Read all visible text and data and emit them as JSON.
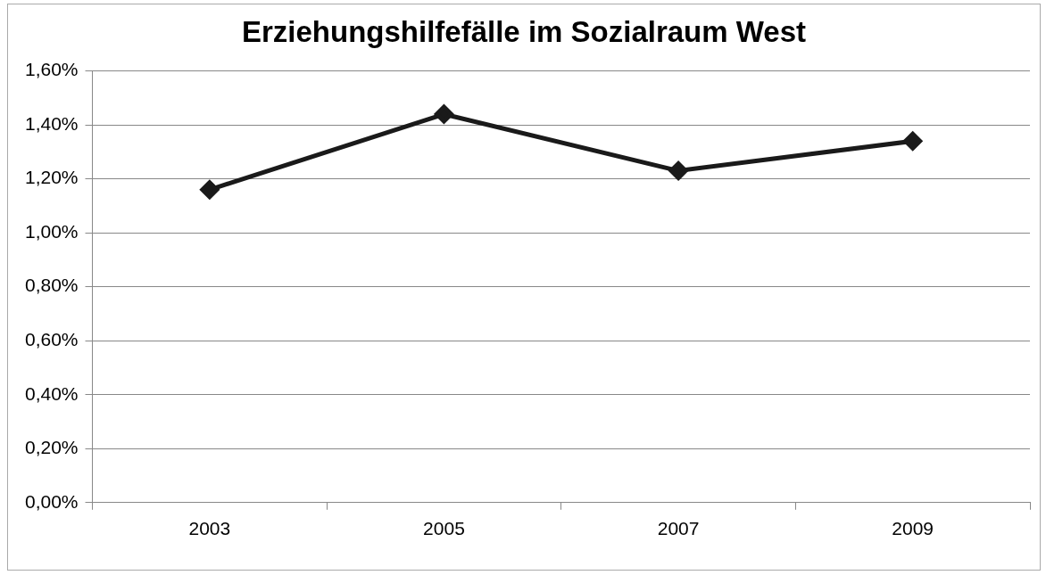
{
  "chart_data": {
    "type": "line",
    "title": "Erziehungshilfefälle im Sozialraum West",
    "categories": [
      "2003",
      "2005",
      "2007",
      "2009"
    ],
    "series": [
      {
        "color": "#1a1a1a",
        "values": [
          1.16,
          1.44,
          1.23,
          1.34
        ]
      }
    ],
    "ylim": [
      0,
      1.6
    ],
    "yticks": [
      {
        "value": 0,
        "label": "0,00%"
      },
      {
        "value": 0.2,
        "label": "0,20%"
      },
      {
        "value": 0.4,
        "label": "0,40%"
      },
      {
        "value": 0.6,
        "label": "0,60%"
      },
      {
        "value": 0.8,
        "label": "0,80%"
      },
      {
        "value": 1.0,
        "label": "1,00%"
      },
      {
        "value": 1.2,
        "label": "1,20%"
      },
      {
        "value": 1.4,
        "label": "1,40%"
      },
      {
        "value": 1.6,
        "label": "1,60%"
      }
    ],
    "grid": "y",
    "legend": false,
    "marker": "diamond",
    "line_style": "solid"
  }
}
